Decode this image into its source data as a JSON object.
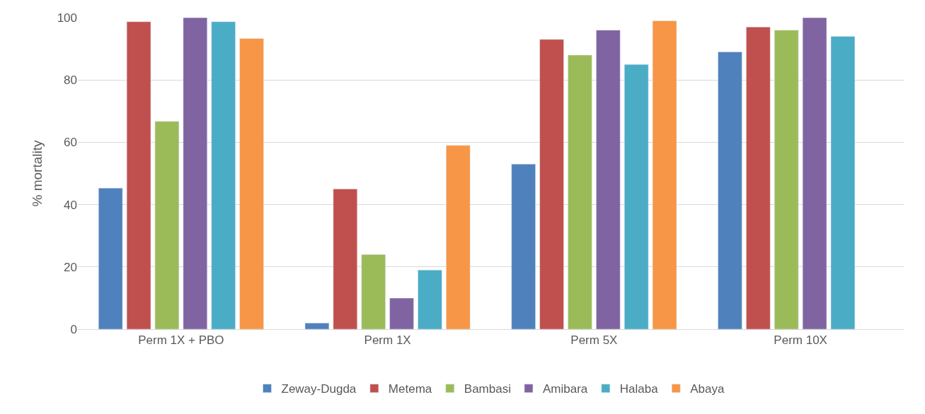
{
  "chart_data": {
    "type": "bar",
    "ylabel": "% mortality",
    "categories": [
      "Perm 1X + PBO",
      "Perm 1X",
      "Perm 5X",
      "Perm 10X"
    ],
    "series": [
      {
        "name": "Zeway-Dugda",
        "color": "#4f81bd",
        "values": [
          45.3,
          2,
          53,
          89
        ]
      },
      {
        "name": "Metema",
        "color": "#c0504d",
        "values": [
          98.7,
          45,
          93,
          97
        ]
      },
      {
        "name": "Bambasi",
        "color": "#9bbb59",
        "values": [
          66.7,
          24,
          88,
          96
        ]
      },
      {
        "name": "Amibara",
        "color": "#8064a2",
        "values": [
          100,
          10,
          96,
          100
        ]
      },
      {
        "name": "Halaba",
        "color": "#4bacc6",
        "values": [
          98.7,
          19,
          85,
          94
        ]
      },
      {
        "name": "Abaya",
        "color": "#f79646",
        "values": [
          93.3,
          59,
          99,
          null
        ]
      }
    ],
    "ylim": [
      0,
      100
    ],
    "yticks": [
      0,
      20,
      40,
      60,
      80,
      100
    ],
    "grid": "y",
    "legend": "bottom"
  }
}
